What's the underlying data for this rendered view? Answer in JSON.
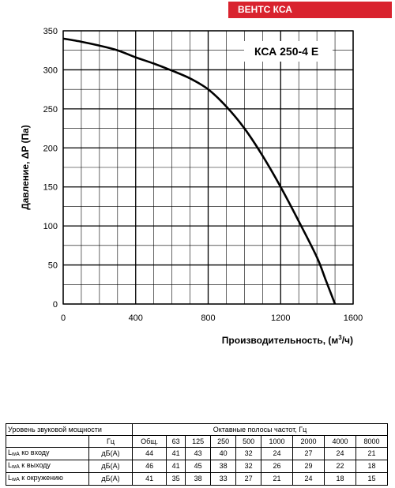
{
  "header": {
    "brand": "ВЕНТС КСА",
    "brand_color": "#d9232e"
  },
  "chart_data": {
    "type": "line",
    "title": "КСА 250-4 Е",
    "xlabel": "Производительность, (м",
    "xlabel_sup": "3",
    "xlabel_end": "/ч)",
    "ylabel": "Давление, ΔP (Па)",
    "xlim": [
      0,
      1600
    ],
    "ylim": [
      0,
      350
    ],
    "x_ticks": [
      "0",
      "400",
      "800",
      "1200",
      "1600"
    ],
    "y_ticks": [
      "0",
      "50",
      "100",
      "150",
      "200",
      "250",
      "300",
      "350"
    ],
    "grid": true,
    "series": [
      {
        "x": [
          0,
          100,
          200,
          300,
          400,
          500,
          600,
          700,
          800,
          900,
          1000,
          1100,
          1200,
          1300,
          1400,
          1450,
          1500
        ],
        "y": [
          340,
          336,
          331,
          325,
          316,
          308,
          299,
          289,
          275,
          253,
          225,
          190,
          150,
          106,
          60,
          30,
          0
        ]
      }
    ],
    "line_color": "#000000"
  },
  "noise_table": {
    "title": "Уровень звуковой мощности",
    "bands_header": "Октавные полосы частот, Гц",
    "hz_label": "Гц",
    "columns": [
      "Общ.",
      "63",
      "125",
      "250",
      "500",
      "1000",
      "2000",
      "4000",
      "8000"
    ],
    "rows": [
      {
        "pre": "L",
        "sub": "wA",
        "post": " ко входу",
        "unit": "дБ(А)",
        "values": [
          "44",
          "41",
          "43",
          "40",
          "32",
          "24",
          "27",
          "24",
          "21"
        ]
      },
      {
        "pre": "L",
        "sub": "wA",
        "post": " к выходу",
        "unit": "дБ(А)",
        "values": [
          "46",
          "41",
          "45",
          "38",
          "32",
          "26",
          "29",
          "22",
          "18"
        ]
      },
      {
        "pre": "L",
        "sub": "wA",
        "post": " к окружению",
        "unit": "дБ(А)",
        "values": [
          "41",
          "35",
          "38",
          "33",
          "27",
          "21",
          "24",
          "18",
          "15"
        ]
      }
    ]
  }
}
